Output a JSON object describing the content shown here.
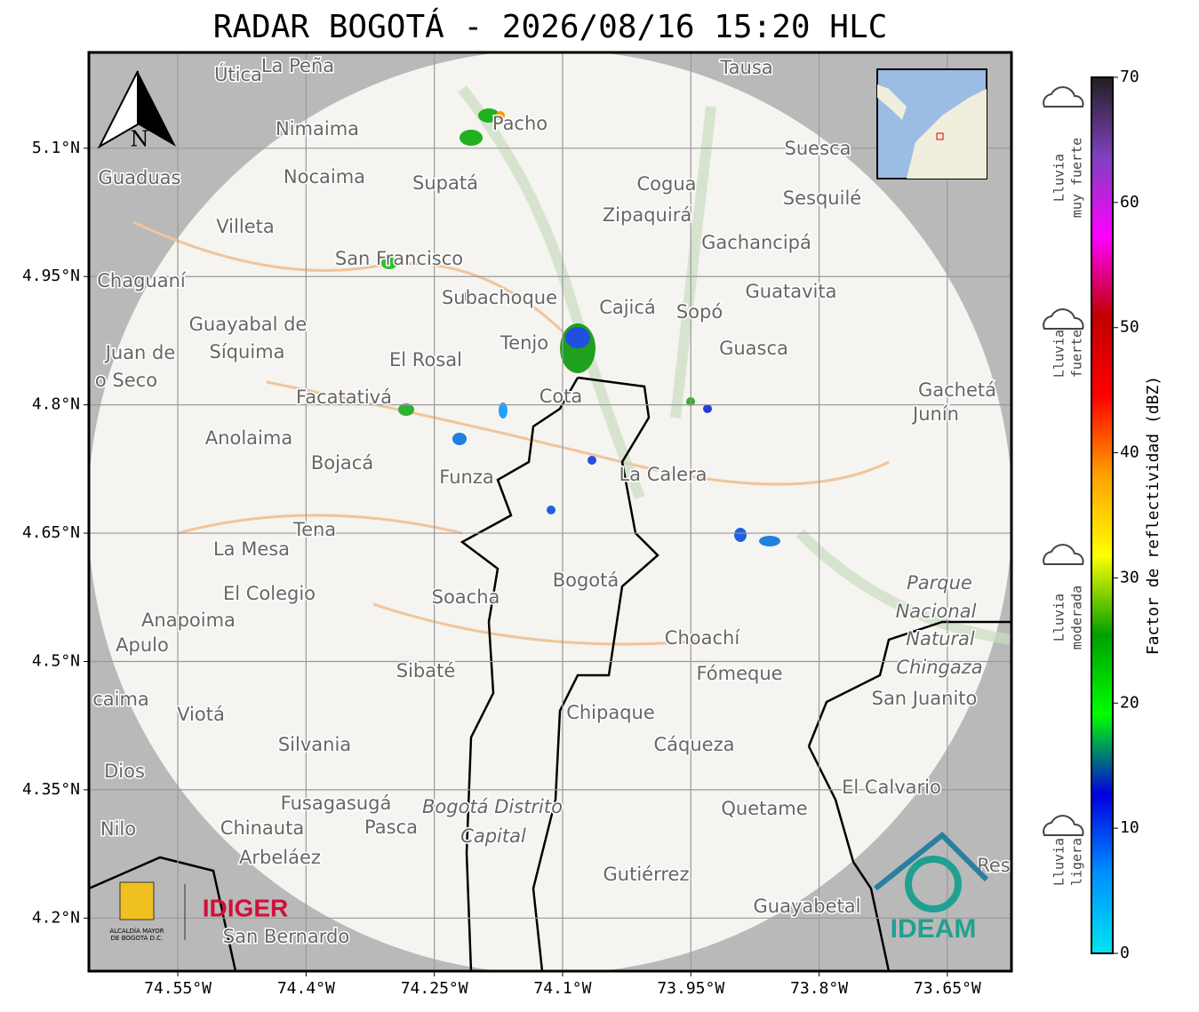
{
  "title": "RADAR BOGOTÁ - 2026/08/16 15:20 HLC",
  "map": {
    "xlim": [
      -74.654,
      -73.575
    ],
    "ylim": [
      4.138,
      5.212
    ],
    "xticks": [
      {
        "value": -74.55,
        "label": "74.55°W"
      },
      {
        "value": -74.4,
        "label": "74.4°W"
      },
      {
        "value": -74.25,
        "label": "74.25°W"
      },
      {
        "value": -74.1,
        "label": "74.1°W"
      },
      {
        "value": -73.95,
        "label": "73.95°W"
      },
      {
        "value": -73.8,
        "label": "73.8°W"
      },
      {
        "value": -73.65,
        "label": "73.65°W"
      }
    ],
    "yticks": [
      {
        "value": 5.1,
        "label": "5.1°N"
      },
      {
        "value": 4.95,
        "label": "4.95°N"
      },
      {
        "value": 4.8,
        "label": "4.8°N"
      },
      {
        "value": 4.65,
        "label": "4.65°N"
      },
      {
        "value": 4.5,
        "label": "4.5°N"
      },
      {
        "value": 4.35,
        "label": "4.35°N"
      },
      {
        "value": 4.2,
        "label": "4.2°N"
      }
    ],
    "grid": true,
    "north": "N",
    "places": [
      "Útica",
      "La Peña",
      "Tausa",
      "Nimaima",
      "Pacho",
      "Suesca",
      "Guaduas",
      "Nocaima",
      "Supatá",
      "Cogua",
      "Sesquilé",
      "Zipaquirá",
      "Villeta",
      "Gachancipá",
      "San Francisco",
      "Chaguaní",
      "Guatavita",
      "Subachoque",
      "Cajicá",
      "Sopó",
      "Guayabal de",
      "Síquima",
      "Juan de",
      "Tenjo",
      "Guasca",
      "El Rosal",
      "o Seco",
      "Gachetá",
      "Facatativá",
      "Cota",
      "Junín",
      "Anolaima",
      "Bojacá",
      "Funza",
      "La Calera",
      "Tena",
      "La Mesa",
      "Parque",
      "Bogotá",
      "El Colegio",
      "Soacha",
      "Nacional",
      "Anapoima",
      "Choachí",
      "Natural",
      "Apulo",
      "Chingaza",
      "Sibaté",
      "Fómeque",
      "San Juanito",
      "caima",
      "Viotá",
      "Chipaque",
      "Silvania",
      "Cáqueza",
      "Dios",
      "El Calvario",
      "Fusagasugá",
      "Bogotá Distrito",
      "Quetame",
      "Pasca",
      "Nilo",
      "Chinauta",
      "Capital",
      "Arbeláez",
      "Res",
      "Gutiérrez",
      "Guayabetal",
      "San Bernardo"
    ]
  },
  "logos": {
    "alcaldia": "ALCALDÍA MAYOR",
    "alcaldia2": "DE BOGOTÁ D.C.",
    "idiger": "IDIGER",
    "ideam": "IDEAM"
  },
  "colorbar": {
    "label": "Factor de reflectividad (dBZ)",
    "lim": [
      0,
      70
    ],
    "ticks": [
      0,
      10,
      20,
      30,
      40,
      50,
      60,
      70
    ],
    "colors": [
      "#00e5f0",
      "#0090ff",
      "#0000e0",
      "#00ff00",
      "#00a000",
      "#ffff00",
      "#ffa000",
      "#ff0000",
      "#c00000",
      "#ff00ff",
      "#8040c0",
      "#202020"
    ]
  },
  "rain": [
    [
      "Lluvia",
      "muy fuerte"
    ],
    [
      "Lluvia",
      "fuerte"
    ],
    [
      "Lluvia",
      "moderada"
    ],
    [
      "Lluvia",
      "ligera"
    ]
  ]
}
